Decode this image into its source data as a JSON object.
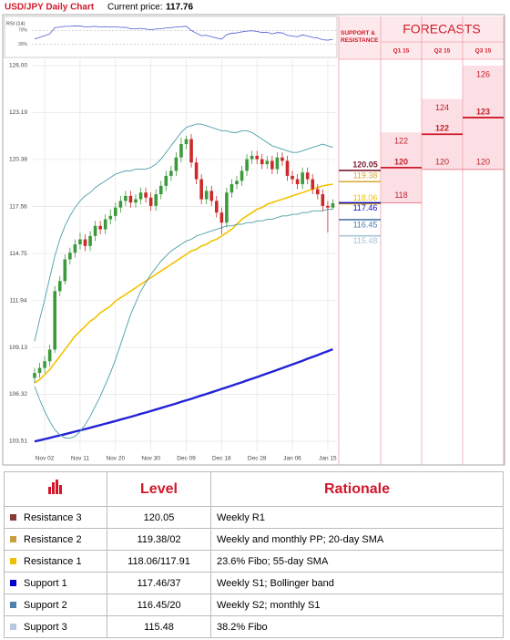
{
  "header": {
    "title": "USD/JPY Daily Chart",
    "price_label": "Current price:",
    "price": "117.76"
  },
  "chart_data": {
    "type": "candlestick",
    "categories": [
      null,
      null,
      "Nov 02",
      null,
      null,
      null,
      null,
      null,
      null,
      "Nov 11",
      null,
      null,
      null,
      null,
      null,
      null,
      "Nov 20",
      null,
      null,
      null,
      null,
      null,
      null,
      "Nov 30",
      null,
      null,
      null,
      null,
      null,
      null,
      "Dec 09",
      null,
      null,
      null,
      null,
      null,
      null,
      "Dec 18",
      null,
      null,
      null,
      null,
      null,
      null,
      "Dec 28",
      null,
      null,
      null,
      null,
      null,
      null,
      "Jan 06",
      null,
      null,
      null,
      null,
      null,
      null,
      "Jan 15",
      null
    ],
    "open": [
      107.3,
      107.6,
      107.9,
      108.3,
      109.0,
      112.5,
      113.1,
      114.4,
      114.8,
      115.3,
      115.6,
      115.2,
      115.8,
      116.4,
      116.2,
      116.8,
      117.0,
      117.5,
      117.9,
      118.2,
      117.8,
      118.0,
      118.4,
      118.1,
      117.6,
      118.3,
      118.8,
      119.4,
      119.7,
      120.5,
      121.3,
      121.6,
      120.2,
      119.2,
      118.0,
      118.5,
      117.9,
      117.2,
      116.6,
      118.4,
      118.9,
      119.1,
      119.7,
      120.4,
      120.6,
      120.4,
      120.1,
      120.3,
      119.8,
      120.5,
      120.3,
      119.4,
      119.2,
      118.9,
      119.6,
      119.2,
      118.6,
      118.3,
      117.6,
      117.5
    ],
    "high": [
      107.9,
      108.2,
      108.6,
      109.3,
      112.8,
      113.4,
      114.7,
      115.1,
      115.6,
      116.0,
      115.9,
      116.1,
      116.7,
      116.7,
      117.1,
      117.4,
      117.8,
      118.2,
      118.5,
      118.5,
      118.3,
      118.7,
      118.7,
      118.4,
      118.6,
      119.1,
      119.7,
      120.0,
      120.8,
      121.7,
      121.8,
      121.9,
      120.5,
      119.5,
      118.8,
      118.8,
      118.2,
      117.5,
      118.7,
      119.2,
      119.4,
      120.0,
      120.7,
      120.9,
      120.9,
      120.7,
      120.6,
      120.6,
      120.8,
      120.8,
      120.6,
      119.7,
      119.5,
      119.9,
      119.9,
      119.5,
      118.9,
      118.6,
      117.9,
      118.0
    ],
    "low": [
      107.0,
      107.3,
      107.6,
      108.0,
      108.8,
      112.2,
      112.9,
      114.1,
      114.5,
      115.0,
      114.9,
      114.9,
      115.5,
      115.9,
      115.9,
      116.5,
      116.7,
      117.2,
      117.6,
      117.5,
      117.5,
      117.7,
      117.8,
      117.3,
      117.3,
      118.0,
      118.5,
      119.1,
      119.4,
      120.2,
      121.0,
      119.9,
      118.9,
      117.7,
      117.7,
      117.6,
      116.9,
      115.9,
      116.3,
      118.1,
      118.6,
      118.8,
      119.4,
      120.1,
      120.1,
      119.8,
      119.8,
      119.5,
      119.5,
      120.0,
      119.1,
      118.9,
      118.6,
      118.6,
      118.9,
      118.3,
      118.0,
      117.3,
      116.0,
      117.4
    ],
    "close": [
      107.6,
      107.9,
      108.3,
      109.0,
      112.5,
      113.1,
      114.4,
      114.8,
      115.3,
      115.6,
      115.2,
      115.8,
      116.4,
      116.2,
      116.8,
      117.0,
      117.5,
      117.9,
      118.2,
      117.8,
      118.0,
      118.4,
      118.1,
      117.6,
      118.3,
      118.8,
      119.4,
      119.7,
      120.5,
      121.3,
      121.6,
      120.2,
      119.2,
      118.0,
      118.5,
      117.9,
      117.2,
      116.6,
      118.4,
      118.9,
      119.1,
      119.7,
      120.4,
      120.6,
      120.4,
      120.1,
      120.3,
      119.8,
      120.5,
      120.3,
      119.4,
      119.2,
      118.9,
      119.6,
      119.2,
      118.6,
      118.3,
      117.6,
      117.5,
      117.76
    ],
    "up_color": "#3c9a3c",
    "down_color": "#cc2a2a",
    "lines": [
      {
        "color": "#f2c200",
        "values": [
          107.0,
          107.2,
          107.5,
          107.8,
          108.2,
          108.6,
          109.0,
          109.4,
          109.8,
          110.1,
          110.4,
          110.7,
          110.9,
          111.2,
          111.4,
          111.6,
          111.9,
          112.1,
          112.3,
          112.5,
          112.7,
          112.9,
          113.1,
          113.3,
          113.5,
          113.7,
          113.9,
          114.1,
          114.3,
          114.5,
          114.7,
          114.9,
          115.0,
          115.2,
          115.3,
          115.5,
          115.6,
          115.8,
          116.0,
          116.2,
          116.5,
          116.8,
          117.0,
          117.2,
          117.4,
          117.5,
          117.7,
          117.8,
          117.9,
          118.0,
          118.1,
          118.2,
          118.3,
          118.4,
          118.5,
          118.6,
          118.7,
          118.8,
          118.85,
          118.9
        ]
      },
      {
        "color": "#2222d8",
        "values": [
          103.5,
          103.57,
          103.64,
          103.71,
          103.79,
          103.86,
          103.93,
          104.01,
          104.09,
          104.16,
          104.24,
          104.32,
          104.4,
          104.48,
          104.56,
          104.64,
          104.72,
          104.81,
          104.89,
          104.97,
          105.06,
          105.15,
          105.23,
          105.32,
          105.41,
          105.5,
          105.59,
          105.68,
          105.77,
          105.87,
          105.96,
          106.05,
          106.15,
          106.25,
          106.34,
          106.44,
          106.54,
          106.64,
          106.74,
          106.84,
          106.94,
          107.04,
          107.15,
          107.25,
          107.35,
          107.46,
          107.57,
          107.67,
          107.78,
          107.89,
          108.0,
          108.11,
          108.22,
          108.33,
          108.45,
          108.56,
          108.67,
          108.79,
          108.9,
          109.02
        ]
      },
      {
        "color": "#4a9ea8",
        "values": [
          109.5,
          110.8,
          112.0,
          113.3,
          114.6,
          115.6,
          116.4,
          117.0,
          117.5,
          117.9,
          118.2,
          118.4,
          118.7,
          118.9,
          119.1,
          119.3,
          119.5,
          119.6,
          119.7,
          119.7,
          119.8,
          119.8,
          119.8,
          119.9,
          120.1,
          120.4,
          120.8,
          121.2,
          121.6,
          122.0,
          122.3,
          122.4,
          122.5,
          122.5,
          122.4,
          122.3,
          122.2,
          122.1,
          122.1,
          122.0,
          122.0,
          122.1,
          122.1,
          122.0,
          121.8,
          121.6,
          121.4,
          121.2,
          121.1,
          121.0,
          120.9,
          120.8,
          120.8,
          120.9,
          121.0,
          121.1,
          121.2,
          121.3,
          121.2,
          121.1
        ]
      },
      {
        "color": "#4a9ea8",
        "values": [
          106.8,
          106.0,
          105.3,
          104.7,
          104.2,
          103.9,
          103.7,
          103.7,
          103.8,
          104.1,
          104.5,
          105.0,
          105.6,
          106.2,
          106.9,
          107.6,
          108.4,
          109.3,
          110.2,
          111.1,
          111.8,
          112.5,
          113.0,
          113.5,
          113.9,
          114.3,
          114.6,
          114.9,
          115.1,
          115.3,
          115.5,
          115.6,
          115.8,
          115.9,
          116.0,
          116.1,
          116.2,
          116.3,
          116.4,
          116.4,
          116.5,
          116.5,
          116.6,
          116.6,
          116.7,
          116.7,
          116.8,
          116.8,
          116.9,
          117.0,
          117.0,
          117.1,
          117.1,
          117.2,
          117.2,
          117.3,
          117.3,
          117.3,
          117.4,
          117.4
        ]
      }
    ],
    "ylim": [
      102.91,
      126.38
    ],
    "yticks": [
      {
        "value": 126,
        "label": "126.00"
      },
      123.19,
      120.38,
      117.56,
      114.75,
      111.94,
      109.13,
      106.32,
      103.51
    ],
    "grid": true,
    "levels": [
      {
        "value": 120.05,
        "color": "#7a1a30"
      },
      {
        "value": 119.38,
        "color": "#d8a830"
      },
      {
        "value": 118.06,
        "color": "#f0c000"
      },
      {
        "value": 117.46,
        "color": "#0a0ac8"
      },
      {
        "value": 116.45,
        "color": "#4a78a8"
      },
      {
        "value": 115.48,
        "color": "#a8c4d4"
      }
    ],
    "rsi": {
      "label": "RSI (14)",
      "ylim": [
        0,
        100
      ],
      "yticks": [
        {
          "value": 70,
          "label": "70%"
        },
        {
          "value": 30,
          "label": "30%"
        }
      ],
      "color": "#4a5ad0",
      "values": [
        45,
        50,
        55,
        60,
        78,
        80,
        82,
        82,
        83,
        83,
        80,
        81,
        82,
        80,
        81,
        80,
        80,
        79,
        79,
        75,
        75,
        76,
        74,
        72,
        74,
        75,
        77,
        78,
        80,
        81,
        82,
        70,
        62,
        55,
        56,
        52,
        48,
        45,
        58,
        62,
        63,
        66,
        68,
        69,
        67,
        64,
        65,
        60,
        64,
        63,
        56,
        54,
        52,
        57,
        54,
        50,
        48,
        43,
        42,
        44
      ]
    },
    "forecast": {
      "title": "FORECASTS",
      "levels_title": "SUPPORT & RESISTANCE",
      "columns": [
        {
          "period": "Q1 15",
          "high": 122,
          "mid": 120,
          "low": 118
        },
        {
          "period": "Q2 15",
          "high": 124,
          "mid": 122,
          "low": 120
        },
        {
          "period": "Q3 15",
          "high": 126,
          "mid": 123,
          "low": 120
        }
      ]
    }
  },
  "table": {
    "columns": [
      "Level",
      "Rationale"
    ],
    "rows": [
      {
        "name": "Resistance 3",
        "color": "#8b3a3a",
        "level": "120.05",
        "rationale": "Weekly R1"
      },
      {
        "name": "Resistance 2",
        "color": "#c8a040",
        "level": "119.38/02",
        "rationale": "Weekly and monthly PP; 20-day SMA"
      },
      {
        "name": "Resistance 1",
        "color": "#f0c000",
        "level": "118.06/117.91",
        "rationale": "23.6% Fibo; 55-day SMA"
      },
      {
        "name": "Support 1",
        "color": "#0000cc",
        "level": "117.46/37",
        "rationale": "Weekly S1; Bollinger band"
      },
      {
        "name": "Support 2",
        "color": "#5080b0",
        "level": "116.45/20",
        "rationale": "Weekly S2; monthly S1"
      },
      {
        "name": "Support 3",
        "color": "#b8c8e0",
        "level": "115.48",
        "rationale": "38.2% Fibo"
      }
    ]
  }
}
